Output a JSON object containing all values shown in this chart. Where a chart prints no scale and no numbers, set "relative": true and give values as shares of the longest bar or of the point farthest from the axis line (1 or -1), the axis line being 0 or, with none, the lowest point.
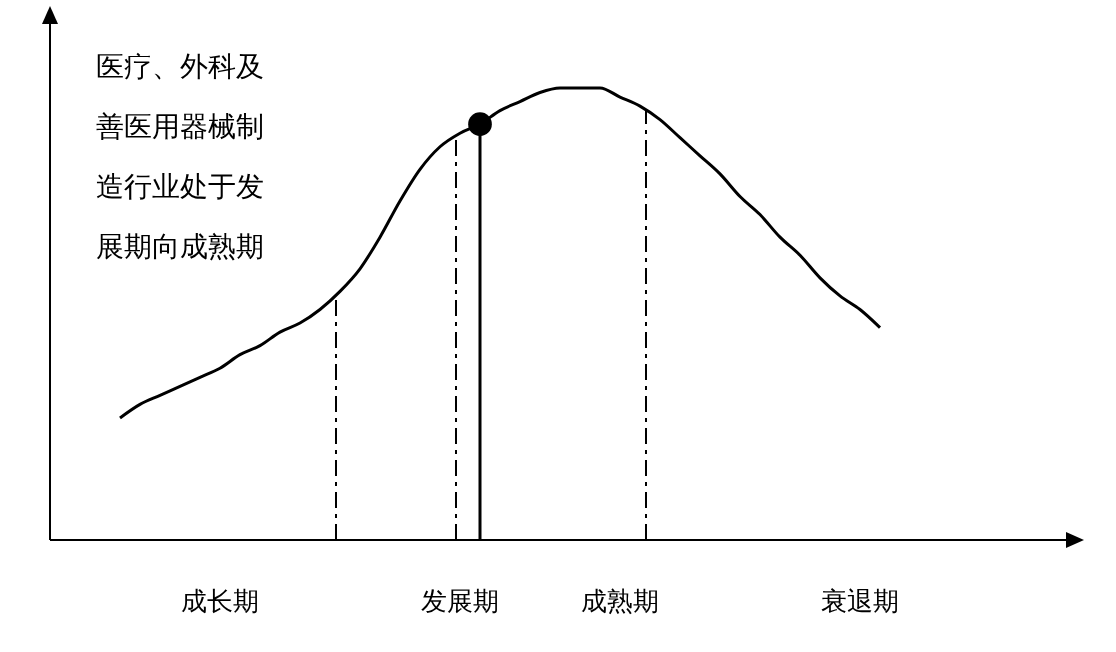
{
  "chart_data": {
    "type": "line",
    "relative": true,
    "categories": [
      null,
      null,
      null,
      null,
      null,
      "成长期",
      null,
      null,
      null,
      null,
      null,
      null,
      null,
      null,
      null,
      null,
      null,
      "发展期",
      null,
      null,
      null,
      null,
      null,
      null,
      null,
      "成熟期",
      null,
      null,
      null,
      null,
      null,
      null,
      null,
      null,
      null,
      null,
      null,
      "衰退期",
      null
    ],
    "series": [
      {
        "color": "#000000",
        "values": [
          0.27,
          0.3,
          0.32,
          0.34,
          0.36,
          0.38,
          0.41,
          0.43,
          0.46,
          0.48,
          0.51,
          0.55,
          0.6,
          0.67,
          0.75,
          0.82,
          0.87,
          0.9,
          0.92,
          0.95,
          0.97,
          0.99,
          1.0,
          1.0,
          1.0,
          0.98,
          0.96,
          0.93,
          0.89,
          0.85,
          0.81,
          0.76,
          0.72,
          0.67,
          0.63,
          0.58,
          0.54,
          0.51,
          0.47
        ]
      },
      {
        "type": "scatter",
        "color": "#000000",
        "marker": "circle",
        "values": [
          null,
          null,
          null,
          null,
          null,
          null,
          null,
          null,
          null,
          null,
          null,
          null,
          null,
          null,
          null,
          null,
          null,
          null,
          0.92,
          null,
          null,
          null,
          null,
          null,
          null,
          null,
          null,
          null,
          null,
          null,
          null,
          null,
          null,
          null,
          null,
          null,
          null,
          null,
          null
        ]
      }
    ],
    "annotations": [
      "医疗、外科及善医用器械制造行业处于发展期向成熟期"
    ],
    "tick_labels": "x",
    "grid": false
  }
}
